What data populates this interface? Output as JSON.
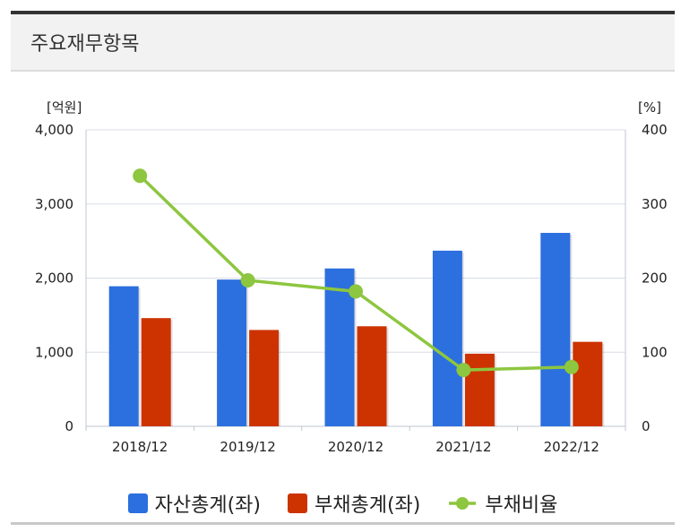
{
  "header": {
    "title": "주요재무항목"
  },
  "chart_data": {
    "type": "bar",
    "categories": [
      "2018/12",
      "2019/12",
      "2020/12",
      "2021/12",
      "2022/12"
    ],
    "series": [
      {
        "name": "자산총계(좌)",
        "type": "bar",
        "axis": "left",
        "color": "#2c6fde",
        "values": [
          1890,
          1980,
          2130,
          2370,
          2610
        ]
      },
      {
        "name": "부채총계(좌)",
        "type": "bar",
        "axis": "left",
        "color": "#cc3300",
        "values": [
          1460,
          1300,
          1350,
          980,
          1140
        ]
      },
      {
        "name": "부채비율",
        "type": "line",
        "axis": "right",
        "color": "#8dc63f",
        "values": [
          338,
          197,
          182,
          76,
          80
        ]
      }
    ],
    "y_left": {
      "unit": "[억원]",
      "range": [
        0,
        4000
      ],
      "ticks": [
        "0",
        "1,000",
        "2,000",
        "3,000",
        "4,000"
      ]
    },
    "y_right": {
      "unit": "[%]",
      "range": [
        0,
        400
      ],
      "ticks": [
        "0",
        "100",
        "200",
        "300",
        "400"
      ]
    },
    "grid": true,
    "legend": "bottom-center"
  }
}
